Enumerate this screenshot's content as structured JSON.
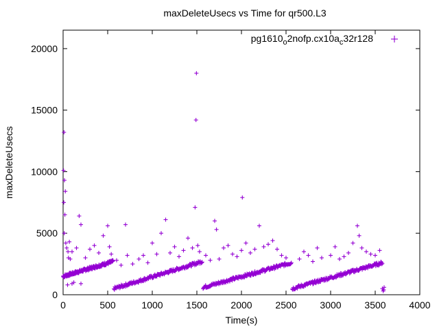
{
  "chart_data": {
    "type": "scatter",
    "title": "maxDeleteUsecs vs Time for qr500.L3",
    "xlabel": "Time(s)",
    "ylabel": "maxDeleteUsecs",
    "xlim": [
      0,
      4000
    ],
    "ylim": [
      0,
      21500
    ],
    "x_ticks": [
      0,
      500,
      1000,
      1500,
      2000,
      2500,
      3000,
      3500,
      4000
    ],
    "y_ticks": [
      0,
      5000,
      10000,
      15000,
      20000
    ],
    "grid": false,
    "legend_position": "top-right",
    "series": [
      {
        "name": "pg1610_o2nofp.cx10a_c32r128",
        "color": "#9400d3",
        "marker": "plus",
        "trend_segments": [
          {
            "x_start": 0,
            "x_end": 560,
            "y_start": 1500,
            "y_end": 2700
          },
          {
            "x_start": 570,
            "x_end": 1560,
            "y_start": 500,
            "y_end": 2700
          },
          {
            "x_start": 1570,
            "x_end": 2560,
            "y_start": 600,
            "y_end": 2600
          },
          {
            "x_start": 2570,
            "x_end": 3580,
            "y_start": 500,
            "y_end": 2600
          }
        ],
        "outliers": [
          [
            5,
            10100
          ],
          [
            10,
            13200
          ],
          [
            15,
            9300
          ],
          [
            8,
            7500
          ],
          [
            20,
            6500
          ],
          [
            25,
            8400
          ],
          [
            12,
            5000
          ],
          [
            30,
            4200
          ],
          [
            40,
            3800
          ],
          [
            55,
            3500
          ],
          [
            70,
            4300
          ],
          [
            60,
            3000
          ],
          [
            80,
            2900
          ],
          [
            100,
            3500
          ],
          [
            150,
            3800
          ],
          [
            180,
            6400
          ],
          [
            200,
            5700
          ],
          [
            250,
            3000
          ],
          [
            300,
            3700
          ],
          [
            350,
            4000
          ],
          [
            400,
            3400
          ],
          [
            450,
            4800
          ],
          [
            500,
            5600
          ],
          [
            520,
            3900
          ],
          [
            540,
            3300
          ],
          [
            100,
            900
          ],
          [
            120,
            1000
          ],
          [
            200,
            900
          ],
          [
            50,
            800
          ],
          [
            600,
            2800
          ],
          [
            650,
            2400
          ],
          [
            700,
            5700
          ],
          [
            720,
            3200
          ],
          [
            780,
            2500
          ],
          [
            850,
            2900
          ],
          [
            900,
            3200
          ],
          [
            950,
            2600
          ],
          [
            1000,
            4200
          ],
          [
            1050,
            3300
          ],
          [
            1100,
            5000
          ],
          [
            1150,
            6100
          ],
          [
            1200,
            3400
          ],
          [
            1250,
            3900
          ],
          [
            1300,
            3100
          ],
          [
            1350,
            3600
          ],
          [
            1400,
            4600
          ],
          [
            1450,
            3800
          ],
          [
            1480,
            7100
          ],
          [
            1490,
            14200
          ],
          [
            1495,
            18000
          ],
          [
            1510,
            4000
          ],
          [
            1530,
            3500
          ],
          [
            1600,
            3200
          ],
          [
            1650,
            2800
          ],
          [
            1700,
            6000
          ],
          [
            1720,
            5300
          ],
          [
            1750,
            2900
          ],
          [
            1800,
            3800
          ],
          [
            1850,
            4000
          ],
          [
            1900,
            3300
          ],
          [
            1950,
            3100
          ],
          [
            2000,
            3600
          ],
          [
            2010,
            7900
          ],
          [
            2050,
            4200
          ],
          [
            2100,
            3400
          ],
          [
            2150,
            3700
          ],
          [
            2200,
            5600
          ],
          [
            2250,
            3900
          ],
          [
            2300,
            4100
          ],
          [
            2350,
            4400
          ],
          [
            2400,
            3700
          ],
          [
            2450,
            3200
          ],
          [
            2500,
            3000
          ],
          [
            2650,
            2900
          ],
          [
            2700,
            3500
          ],
          [
            2750,
            3200
          ],
          [
            2800,
            2700
          ],
          [
            2850,
            3800
          ],
          [
            2900,
            3000
          ],
          [
            3000,
            3200
          ],
          [
            3050,
            3900
          ],
          [
            3100,
            2900
          ],
          [
            3150,
            3100
          ],
          [
            3200,
            3400
          ],
          [
            3250,
            4200
          ],
          [
            3300,
            5600
          ],
          [
            3320,
            4800
          ],
          [
            3350,
            3800
          ],
          [
            3400,
            3500
          ],
          [
            3450,
            3300
          ],
          [
            3500,
            3200
          ],
          [
            3550,
            3600
          ],
          [
            3580,
            500
          ],
          [
            3590,
            300
          ],
          [
            3600,
            600
          ],
          [
            3595,
            400
          ]
        ]
      }
    ]
  }
}
